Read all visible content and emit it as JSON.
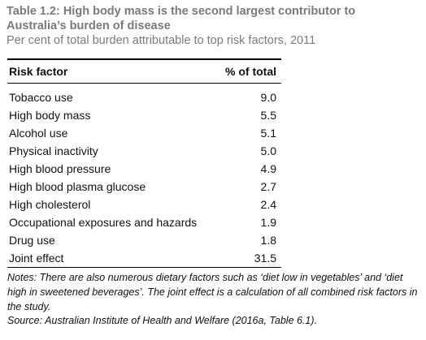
{
  "header": {
    "title": "Table 1.2: High body mass is the second largest contributor to Australia’s burden of disease",
    "subtitle": "Per cent of total burden attributable to top risk factors, 2011"
  },
  "table": {
    "columns": [
      "Risk factor",
      "% of total"
    ],
    "rows": [
      [
        "Tobacco use",
        "9.0"
      ],
      [
        "High body mass",
        "5.5"
      ],
      [
        "Alcohol use",
        "5.1"
      ],
      [
        "Physical inactivity",
        "5.0"
      ],
      [
        "High blood pressure",
        "4.9"
      ],
      [
        "High blood plasma glucose",
        "2.7"
      ],
      [
        "High cholesterol",
        "2.4"
      ],
      [
        "Occupational exposures and hazards",
        "1.9"
      ],
      [
        "Drug use",
        "1.8"
      ],
      [
        "Joint effect",
        "31.5"
      ]
    ]
  },
  "footer": {
    "notes": "Notes: There are also numerous dietary factors such as ‘diet low in vegetables’ and ‘diet high in sweetened beverages’. The joint effect is a calculation of all combined risk factors in the study.",
    "source": "Source: Australian Institute of Health and Welfare (2016a, Table 6.1)."
  }
}
